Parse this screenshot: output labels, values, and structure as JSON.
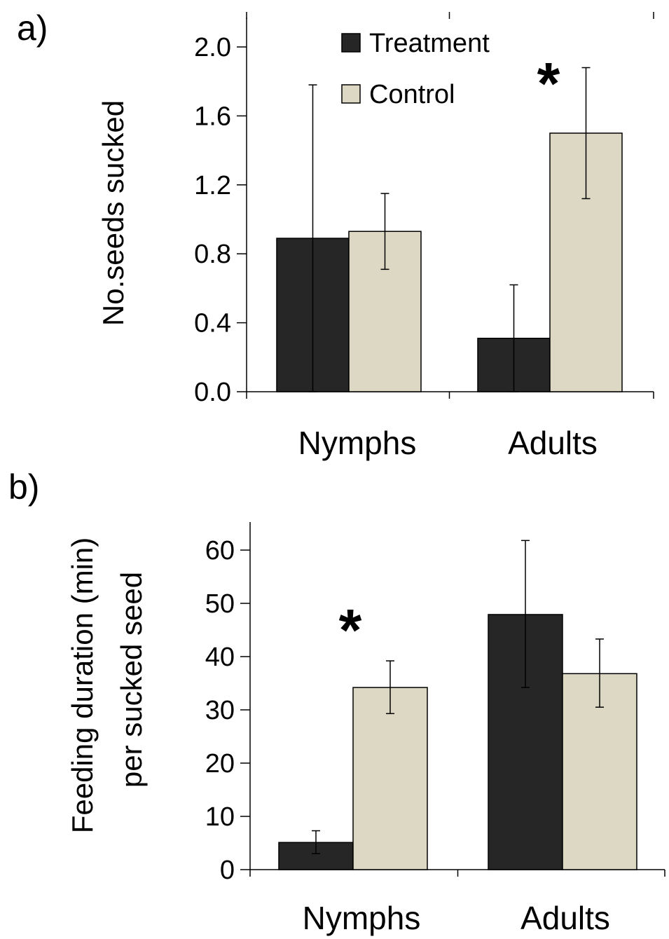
{
  "legend": [
    {
      "label": "Treatment",
      "color": "#262626"
    },
    {
      "label": "Control",
      "color": "#ddd8c3"
    }
  ],
  "chart_data": [
    {
      "type": "bar",
      "panel_label": "a)",
      "categories": [
        "Nymphs",
        "Adults"
      ],
      "ylabel": "No.seeds sucked",
      "ylim": [
        0,
        2.0
      ],
      "yticks": [
        "0.0",
        "0.4",
        "0.8",
        "1.2",
        "1.6",
        "2.0"
      ],
      "series": [
        {
          "name": "Treatment",
          "color": "#262626",
          "values": [
            0.89,
            0.31
          ],
          "err_high": [
            1.78,
            0.62
          ],
          "err_low": [
            0,
            0
          ]
        },
        {
          "name": "Control",
          "color": "#ddd8c3",
          "values": [
            0.93,
            1.5
          ],
          "err_high": [
            1.15,
            1.88
          ],
          "err_low": [
            0.71,
            1.12
          ]
        }
      ],
      "significance": [
        {
          "category": "Adults",
          "marker": "*"
        }
      ]
    },
    {
      "type": "bar",
      "panel_label": "b)",
      "categories": [
        "Nymphs",
        "Adults"
      ],
      "ylabel": "Feeding duration (min)",
      "ylabel2": "per sucked seed",
      "ylim": [
        0,
        60
      ],
      "yticks": [
        "0",
        "10",
        "20",
        "30",
        "40",
        "50",
        "60"
      ],
      "series": [
        {
          "name": "Treatment",
          "color": "#262626",
          "values": [
            5.1,
            47.9
          ],
          "err_high": [
            7.3,
            61.8
          ],
          "err_low": [
            3.0,
            34.2
          ]
        },
        {
          "name": "Control",
          "color": "#ddd8c3",
          "values": [
            34.2,
            36.8
          ],
          "err_high": [
            39.2,
            43.3
          ],
          "err_low": [
            29.3,
            30.5
          ]
        }
      ],
      "significance": [
        {
          "category": "Nymphs",
          "marker": "*"
        }
      ]
    }
  ]
}
